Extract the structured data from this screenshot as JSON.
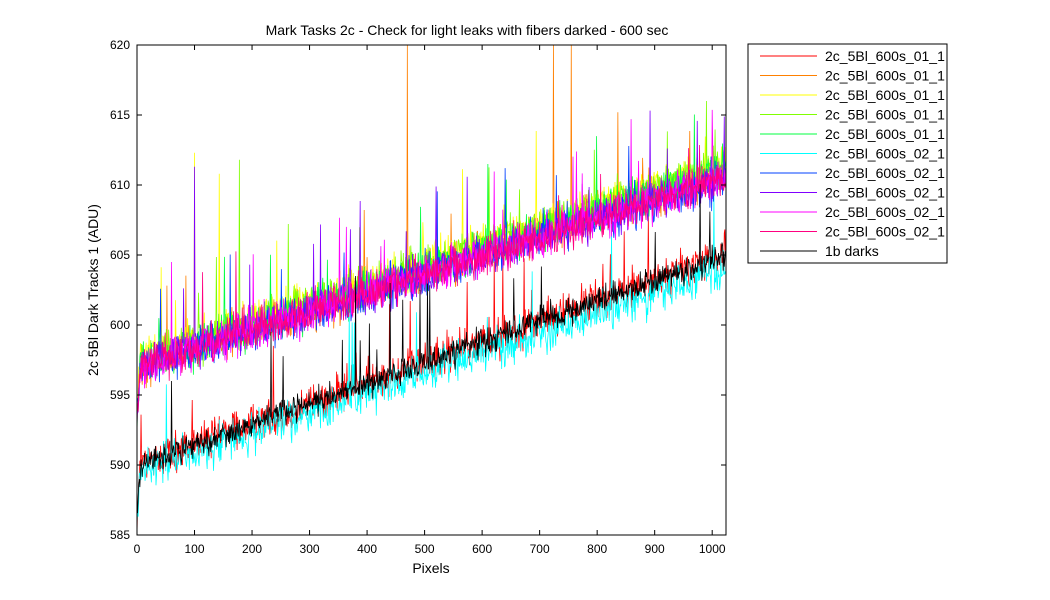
{
  "chart_data": {
    "type": "line",
    "title": "Mark Tasks 2c - Check for light leaks with fibers darked - 600 sec",
    "xlabel": "Pixels",
    "ylabel": "2c 5Bl Dark Tracks 1 (ADU)",
    "xlim": [
      0,
      1024
    ],
    "ylim": [
      585,
      620
    ],
    "xticks": [
      0,
      100,
      200,
      300,
      400,
      500,
      600,
      700,
      800,
      900,
      1000
    ],
    "yticks": [
      585,
      590,
      595,
      600,
      605,
      610,
      615,
      620
    ],
    "grid": false,
    "legend_position": "outside-top-right",
    "series": [
      {
        "name": "2c_5Bl_600s_01_1",
        "color": "#ff0000",
        "start": 590.0,
        "end": 605.0,
        "noise": 0.9
      },
      {
        "name": "2c_5Bl_600s_01_1",
        "color": "#ff8000",
        "start": 597.0,
        "end": 611.0,
        "noise": 0.9
      },
      {
        "name": "2c_5Bl_600s_01_1",
        "color": "#ffff00",
        "start": 597.5,
        "end": 611.5,
        "noise": 0.9
      },
      {
        "name": "2c_5Bl_600s_01_1",
        "color": "#80ff00",
        "start": 597.5,
        "end": 611.5,
        "noise": 0.9
      },
      {
        "name": "2c_5Bl_600s_01_1",
        "color": "#00ff40",
        "start": 597.0,
        "end": 611.0,
        "noise": 0.9
      },
      {
        "name": "2c_5Bl_600s_02_1",
        "color": "#00ffff",
        "start": 589.5,
        "end": 604.0,
        "noise": 0.9
      },
      {
        "name": "2c_5Bl_600s_02_1",
        "color": "#0040ff",
        "start": 597.0,
        "end": 610.5,
        "noise": 0.9
      },
      {
        "name": "2c_5Bl_600s_02_1",
        "color": "#8000ff",
        "start": 597.0,
        "end": 610.5,
        "noise": 0.9
      },
      {
        "name": "2c_5Bl_600s_02_1",
        "color": "#ff00ff",
        "start": 597.0,
        "end": 610.5,
        "noise": 0.9
      },
      {
        "name": "2c_5Bl_600s_02_1",
        "color": "#ff0080",
        "start": 597.0,
        "end": 610.5,
        "noise": 0.9
      },
      {
        "name": "1b darks",
        "color": "#000000",
        "start": 590.0,
        "end": 605.0,
        "noise": 0.6
      }
    ],
    "spikes": [
      {
        "series": 1,
        "x": 470,
        "y": 620
      },
      {
        "series": 1,
        "x": 724,
        "y": 620
      },
      {
        "series": 1,
        "x": 755,
        "y": 620
      },
      {
        "series": 2,
        "x": 100,
        "y": 612.3
      },
      {
        "series": 2,
        "x": 143,
        "y": 610.8
      },
      {
        "series": 3,
        "x": 178,
        "y": 611.8
      },
      {
        "series": 7,
        "x": 100,
        "y": 611.3
      },
      {
        "series": 8,
        "x": 60,
        "y": 604.5
      },
      {
        "series": 4,
        "x": 610,
        "y": 611.5
      },
      {
        "series": 3,
        "x": 990,
        "y": 616.0
      },
      {
        "series": 10,
        "x": 233,
        "y": 599.5
      },
      {
        "series": 10,
        "x": 380,
        "y": 603.5
      },
      {
        "series": 10,
        "x": 440,
        "y": 603.0
      },
      {
        "series": 10,
        "x": 492,
        "y": 602.5
      },
      {
        "series": 10,
        "x": 60,
        "y": 596.0
      }
    ]
  }
}
